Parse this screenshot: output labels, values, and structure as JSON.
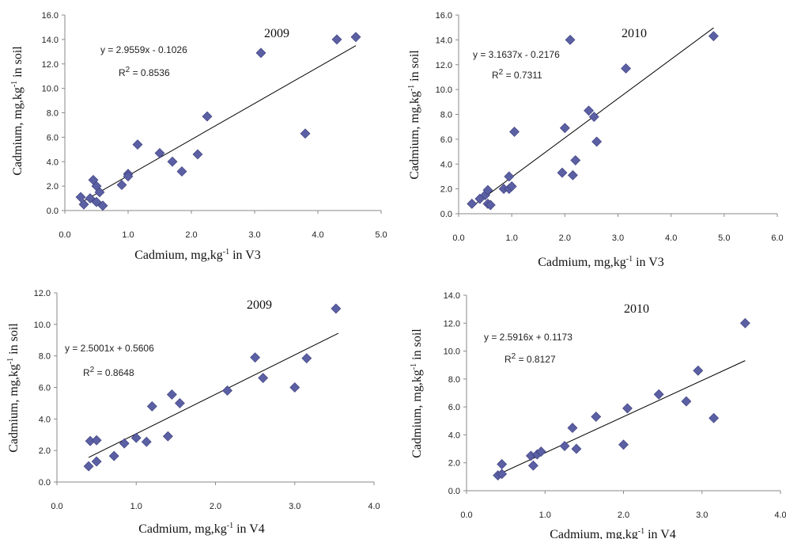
{
  "colors": {
    "marker": "#5b5fa3",
    "markerStroke": "#3a3d7a",
    "axis": "#8a8a8a",
    "trend": "#000000"
  },
  "chart_data": [
    {
      "type": "scatter",
      "year": "2009",
      "equation": "y = 2.9559x - 0.1026",
      "r2_prefix": "R",
      "r2_exp": "2",
      "r2_value": " = 0.8536",
      "xlabel": {
        "pre": "Cadmium, mg,kg",
        "exp": "-1",
        "post": " in V3"
      },
      "ylabel": {
        "pre": "Cadmium, mg,kg",
        "exp": "-1",
        "post": " in soil"
      },
      "xlim": [
        0,
        5
      ],
      "ylim": [
        0,
        16
      ],
      "xticks": [
        "0.0",
        "1.0",
        "2.0",
        "3.0",
        "4.0",
        "5.0"
      ],
      "yticks": [
        "0.0",
        "2.0",
        "4.0",
        "6.0",
        "8.0",
        "10.0",
        "12.0",
        "14.0",
        "16.0"
      ],
      "trend": {
        "slope": 2.9559,
        "intercept": -0.1026,
        "x_range": [
          0.25,
          4.6
        ]
      },
      "points": [
        [
          0.25,
          1.1
        ],
        [
          0.3,
          0.5
        ],
        [
          0.4,
          1.0
        ],
        [
          0.45,
          2.5
        ],
        [
          0.5,
          2.0
        ],
        [
          0.5,
          0.7
        ],
        [
          0.55,
          1.5
        ],
        [
          0.6,
          0.4
        ],
        [
          0.9,
          2.1
        ],
        [
          1.0,
          3.0
        ],
        [
          1.0,
          2.8
        ],
        [
          1.15,
          5.4
        ],
        [
          1.5,
          4.7
        ],
        [
          1.7,
          4.0
        ],
        [
          1.85,
          3.2
        ],
        [
          2.1,
          4.6
        ],
        [
          2.25,
          7.7
        ],
        [
          3.1,
          12.9
        ],
        [
          3.8,
          6.3
        ],
        [
          4.3,
          14.0
        ],
        [
          4.6,
          14.2
        ]
      ]
    },
    {
      "type": "scatter",
      "year": "2010",
      "equation": "y = 3.1637x - 0.2176",
      "r2_prefix": "R",
      "r2_exp": "2",
      "r2_value": " = 0.7311",
      "xlabel": {
        "pre": "Cadmium, mg,kg",
        "exp": "-1",
        "post": " in V3"
      },
      "ylabel": {
        "pre": "Cadmium, mg,kg",
        "exp": "-1",
        "post": " in soil"
      },
      "xlim": [
        0,
        6
      ],
      "ylim": [
        0,
        16
      ],
      "xticks": [
        "0.0",
        "1.0",
        "2.0",
        "3.0",
        "4.0",
        "5.0",
        "6.0"
      ],
      "yticks": [
        "0.0",
        "2.0",
        "4.0",
        "6.0",
        "8.0",
        "10.0",
        "12.0",
        "14.0",
        "16.0"
      ],
      "trend": {
        "slope": 3.1637,
        "intercept": -0.2176,
        "x_range": [
          0.25,
          4.8
        ]
      },
      "points": [
        [
          0.25,
          0.8
        ],
        [
          0.4,
          1.2
        ],
        [
          0.5,
          1.5
        ],
        [
          0.55,
          1.9
        ],
        [
          0.55,
          0.8
        ],
        [
          0.6,
          0.7
        ],
        [
          0.85,
          2.0
        ],
        [
          0.95,
          2.0
        ],
        [
          0.95,
          3.0
        ],
        [
          1.0,
          2.2
        ],
        [
          1.05,
          6.6
        ],
        [
          1.95,
          3.3
        ],
        [
          2.0,
          6.9
        ],
        [
          2.15,
          3.1
        ],
        [
          2.2,
          4.3
        ],
        [
          2.1,
          14.0
        ],
        [
          2.45,
          8.3
        ],
        [
          2.55,
          7.8
        ],
        [
          2.6,
          5.8
        ],
        [
          3.15,
          11.7
        ],
        [
          4.8,
          14.3
        ]
      ]
    },
    {
      "type": "scatter",
      "year": "2009",
      "equation": "y = 2.5001x + 0.5606",
      "r2_prefix": "R",
      "r2_exp": "2",
      "r2_value": " = 0.8648",
      "xlabel": {
        "pre": "Cadmium, mg,kg",
        "exp": "-1",
        "post": " in V4"
      },
      "ylabel": {
        "pre": "Cadmium, mg,kg",
        "exp": "-1",
        "post": " in soil"
      },
      "xlim": [
        0,
        4
      ],
      "ylim": [
        0,
        12
      ],
      "xticks": [
        "0.0",
        "1.0",
        "2.0",
        "3.0",
        "4.0"
      ],
      "yticks": [
        "0.0",
        "2.0",
        "4.0",
        "6.0",
        "8.0",
        "10.0",
        "12.0"
      ],
      "trend": {
        "slope": 2.5001,
        "intercept": 0.5606,
        "x_range": [
          0.4,
          3.55
        ]
      },
      "points": [
        [
          0.4,
          1.0
        ],
        [
          0.42,
          2.6
        ],
        [
          0.5,
          2.65
        ],
        [
          0.5,
          1.3
        ],
        [
          0.72,
          1.65
        ],
        [
          0.85,
          2.45
        ],
        [
          1.0,
          2.8
        ],
        [
          1.13,
          2.55
        ],
        [
          1.2,
          4.8
        ],
        [
          1.4,
          2.9
        ],
        [
          1.45,
          5.55
        ],
        [
          1.55,
          5.0
        ],
        [
          2.15,
          5.8
        ],
        [
          2.5,
          7.9
        ],
        [
          2.6,
          6.6
        ],
        [
          3.0,
          6.0
        ],
        [
          3.15,
          7.85
        ],
        [
          3.52,
          11.0
        ]
      ]
    },
    {
      "type": "scatter",
      "year": "2010",
      "equation": "y = 2.5916x + 0.1173",
      "r2_prefix": "R",
      "r2_exp": "2",
      "r2_value": " = 0.8127",
      "xlabel": {
        "pre": "Cadmium, mg,kg",
        "exp": "-1",
        "post": " in V4"
      },
      "ylabel": {
        "pre": "Cadmium, mg,kg",
        "exp": "-1",
        "post": " in soil"
      },
      "xlim": [
        0,
        4
      ],
      "ylim": [
        0,
        14
      ],
      "xticks": [
        "0.0",
        "1.0",
        "2.0",
        "3.0",
        "4.0"
      ],
      "yticks": [
        "0.0",
        "2.0",
        "4.0",
        "6.0",
        "8.0",
        "10.0",
        "12.0",
        "14.0"
      ],
      "trend": {
        "slope": 2.5916,
        "intercept": 0.1173,
        "x_range": [
          0.4,
          3.55
        ]
      },
      "points": [
        [
          0.4,
          1.1
        ],
        [
          0.45,
          1.2
        ],
        [
          0.45,
          1.9
        ],
        [
          0.82,
          2.5
        ],
        [
          0.85,
          1.8
        ],
        [
          0.9,
          2.6
        ],
        [
          0.95,
          2.8
        ],
        [
          1.25,
          3.2
        ],
        [
          1.35,
          4.5
        ],
        [
          1.4,
          3.0
        ],
        [
          1.65,
          5.3
        ],
        [
          2.0,
          3.3
        ],
        [
          2.05,
          5.9
        ],
        [
          2.45,
          6.9
        ],
        [
          2.8,
          6.4
        ],
        [
          2.95,
          8.6
        ],
        [
          3.15,
          5.2
        ],
        [
          3.55,
          12.0
        ]
      ]
    }
  ]
}
